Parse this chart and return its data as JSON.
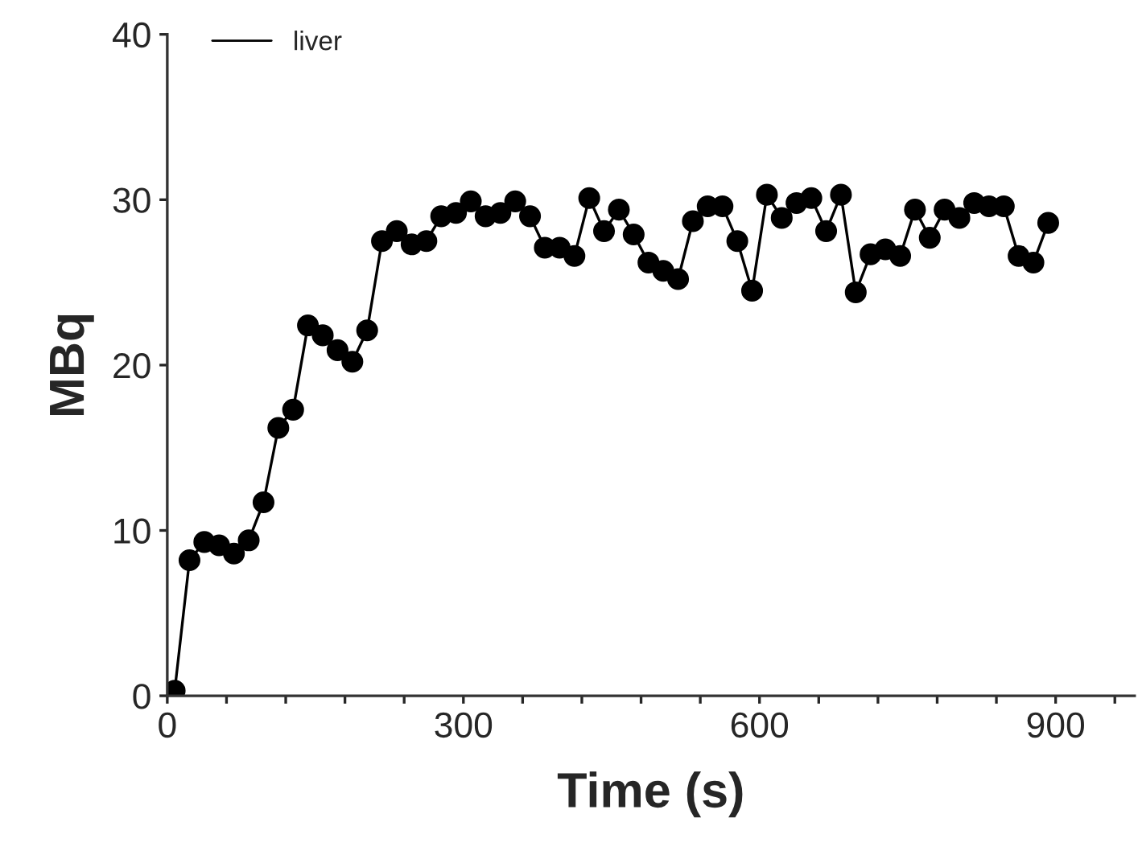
{
  "chart_data": {
    "type": "line",
    "xlabel": "Time (s)",
    "ylabel": "MBq",
    "x": [
      0,
      7.5,
      22.5,
      37.5,
      52.5,
      67.5,
      82.5,
      97.5,
      112.5,
      127.5,
      142.5,
      157.5,
      172.5,
      187.5,
      202.5,
      217.5,
      232.5,
      247.5,
      262.5,
      277.5,
      292.5,
      307.5,
      322.5,
      337.5,
      352.5,
      367.5,
      382.5,
      397.5,
      412.5,
      427.5,
      442.5,
      457.5,
      472.5,
      487.5,
      502.5,
      517.5,
      532.5,
      547.5,
      562.5,
      577.5,
      592.5,
      607.5,
      622.5,
      637.5,
      652.5,
      667.5,
      682.5,
      697.5,
      712.5,
      727.5,
      742.5,
      757.5,
      772.5,
      787.5,
      802.5,
      817.5,
      832.5,
      847.5,
      862.5,
      877.5,
      892.5
    ],
    "series": [
      {
        "name": "liver",
        "color": "#000000",
        "values": [
          0,
          0.3,
          8.2,
          9.3,
          9.1,
          8.6,
          9.4,
          11.7,
          16.2,
          17.3,
          22.4,
          21.8,
          20.9,
          20.2,
          22.1,
          27.5,
          28.1,
          27.3,
          27.5,
          29.0,
          29.2,
          29.9,
          29.0,
          29.2,
          29.9,
          29.0,
          27.1,
          27.1,
          26.6,
          30.1,
          28.1,
          29.4,
          27.9,
          26.2,
          25.7,
          25.2,
          28.7,
          29.6,
          29.6,
          27.5,
          24.5,
          30.3,
          28.9,
          29.8,
          30.1,
          28.1,
          30.3,
          24.4,
          26.7,
          27.0,
          26.6,
          29.4,
          27.7,
          29.4,
          28.9,
          29.8,
          29.6,
          29.6,
          26.6,
          26.2,
          28.6
        ]
      }
    ],
    "xlim": [
      0,
      980
    ],
    "ylim": [
      0,
      40
    ],
    "xticks": [
      0,
      {
        "value": 60,
        "label": null
      },
      {
        "value": 120,
        "label": null
      },
      {
        "value": 180,
        "label": null
      },
      {
        "value": 240,
        "label": null
      },
      300,
      {
        "value": 360,
        "label": null
      },
      {
        "value": 420,
        "label": null
      },
      {
        "value": 480,
        "label": null
      },
      {
        "value": 540,
        "label": null
      },
      600,
      {
        "value": 660,
        "label": null
      },
      {
        "value": 720,
        "label": null
      },
      {
        "value": 780,
        "label": null
      },
      {
        "value": 840,
        "label": null
      },
      900,
      {
        "value": 960,
        "label": null
      }
    ],
    "yticks": [
      0,
      10,
      20,
      30,
      40
    ],
    "marker": "circle",
    "line_style": "solid",
    "legend": "top left",
    "grid": false
  }
}
